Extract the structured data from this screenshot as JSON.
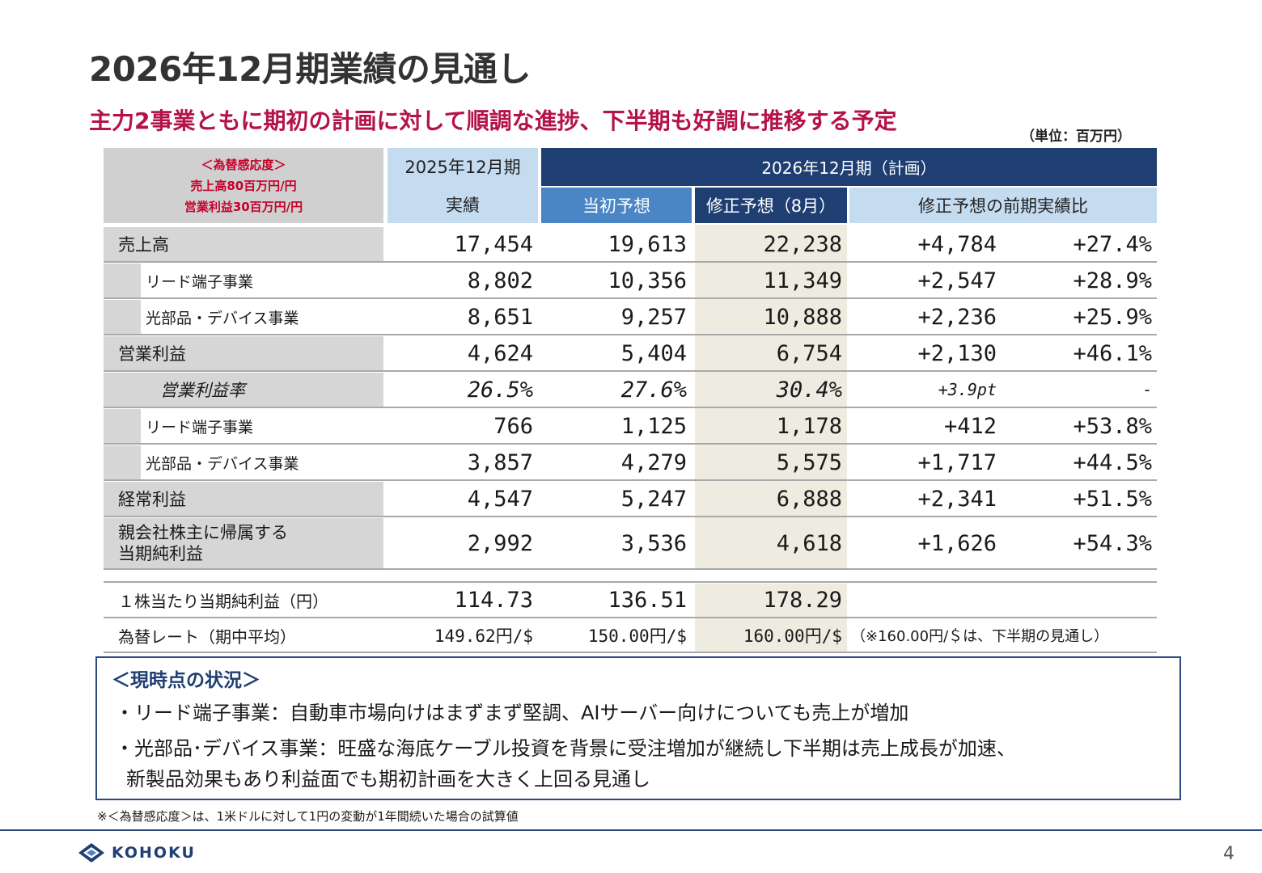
{
  "title": "2026年12月期業績の見通し",
  "subtitle": "主力2事業ともに期初の計画に対して順調な進捗、下半期も好調に推移する予定",
  "unit": "（単位：百万円）",
  "fx_sensitivity": {
    "heading": "＜為替感応度＞",
    "sales": "売上高80百万円/円",
    "op": "営業利益30百万円/円"
  },
  "headers": {
    "fy2025_top": "2025年12月期",
    "fy2025_bottom": "実績",
    "fy2026": "2026年12月期（計画）",
    "initial": "当初予想",
    "revised": "修正予想（8月）",
    "yoy": "修正予想の前期実績比"
  },
  "rows": [
    {
      "label": "売上高",
      "actual": "17,454",
      "initial": "19,613",
      "revised": "22,238",
      "diff": "+4,784",
      "pct": "+27.4%"
    },
    {
      "label": "リード端子事業",
      "actual": "8,802",
      "initial": "10,356",
      "revised": "11,349",
      "diff": "+2,547",
      "pct": "+28.9%"
    },
    {
      "label": "光部品・デバイス事業",
      "actual": "8,651",
      "initial": "9,257",
      "revised": "10,888",
      "diff": "+2,236",
      "pct": "+25.9%"
    },
    {
      "label": "営業利益",
      "actual": "4,624",
      "initial": "5,404",
      "revised": "6,754",
      "diff": "+2,130",
      "pct": "+46.1%"
    },
    {
      "label": "営業利益率",
      "actual": "26.5%",
      "initial": "27.6%",
      "revised": "30.4%",
      "diff": "+3.9pt",
      "pct": "-"
    },
    {
      "label": "リード端子事業",
      "actual": "766",
      "initial": "1,125",
      "revised": "1,178",
      "diff": "+412",
      "pct": "+53.8%"
    },
    {
      "label": "光部品・デバイス事業",
      "actual": "3,857",
      "initial": "4,279",
      "revised": "5,575",
      "diff": "+1,717",
      "pct": "+44.5%"
    },
    {
      "label": "経常利益",
      "actual": "4,547",
      "initial": "5,247",
      "revised": "6,888",
      "diff": "+2,341",
      "pct": "+51.5%"
    },
    {
      "label_line1": "親会社株主に帰属する",
      "label_line2": "当期純利益",
      "actual": "2,992",
      "initial": "3,536",
      "revised": "4,618",
      "diff": "+1,626",
      "pct": "+54.3%"
    }
  ],
  "eps": {
    "label": "１株当たり当期純利益（円）",
    "actual": "114.73",
    "initial": "136.51",
    "revised": "178.29"
  },
  "fx_rate": {
    "label": "為替レート（期中平均）",
    "actual": "149.62円/$",
    "initial": "150.00円/$",
    "revised": "160.00円/$",
    "note": "（※160.00円/＄は、下半期の見通し）"
  },
  "status": {
    "title": "＜現時点の状況＞",
    "line1": "・リード端子事業：自動車市場向けはまずまず堅調、AIサーバー向けについても売上が増加",
    "line2": "・光部品･デバイス事業：旺盛な海底ケーブル投資を背景に受注増加が継続し下半期は売上成長が加速、",
    "line3": "新製品効果もあり利益面でも期初計画を大きく上回る見通し"
  },
  "footnote": "※＜為替感応度＞は、1米ドルに対して1円の変動が1年間続いた場合の試算値",
  "logo_text": "KOHOKU",
  "page_number": "4"
}
